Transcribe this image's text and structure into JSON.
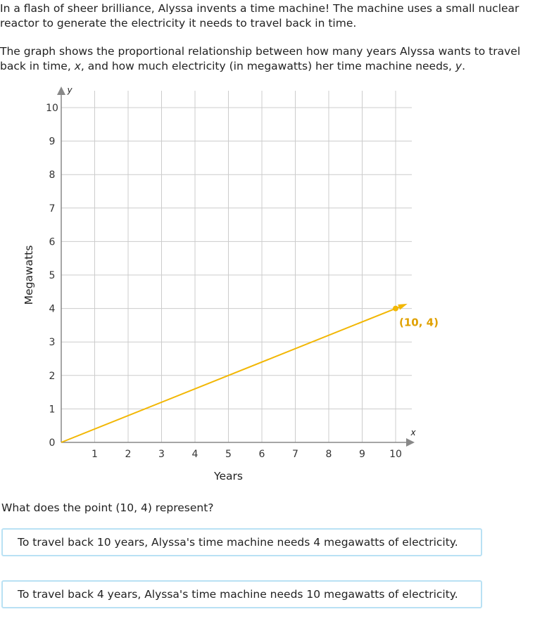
{
  "problem": {
    "intro": "In a flash of sheer brilliance, Alyssa invents a time machine! The machine uses a small nuclear reactor to generate the electricity it needs to travel back in time.",
    "desc_part1": "The graph shows the proportional relationship between how many years Alyssa wants to travel back in time, ",
    "x_var": "x",
    "desc_part2": ", and how much electricity (in megawatts) her time machine needs, ",
    "y_var": "y",
    "desc_part3": "."
  },
  "question": "What does the point (10, 4) represent?",
  "choices": [
    "To travel back 10 years, Alyssa's time machine needs 4 megawatts of electricity.",
    "To travel back 4 years, Alyssa's time machine needs 10 megawatts of electricity."
  ],
  "chart_data": {
    "type": "line",
    "xlabel": "Years",
    "ylabel": "Megawatts",
    "x_axis_var": "x",
    "y_axis_var": "y",
    "xlim": [
      0,
      10
    ],
    "ylim": [
      0,
      10
    ],
    "x_ticks": [
      0,
      1,
      2,
      3,
      4,
      5,
      6,
      7,
      8,
      9,
      10
    ],
    "y_ticks": [
      0,
      1,
      2,
      3,
      4,
      5,
      6,
      7,
      8,
      9,
      10
    ],
    "grid": true,
    "series": [
      {
        "x": [
          0,
          10
        ],
        "y": [
          0,
          4
        ],
        "color": "#f2b705"
      }
    ],
    "points": [
      {
        "x": 10,
        "y": 4,
        "label": "(10, 4)",
        "color": "#f2b705"
      }
    ],
    "label_color": "#e0a100"
  }
}
